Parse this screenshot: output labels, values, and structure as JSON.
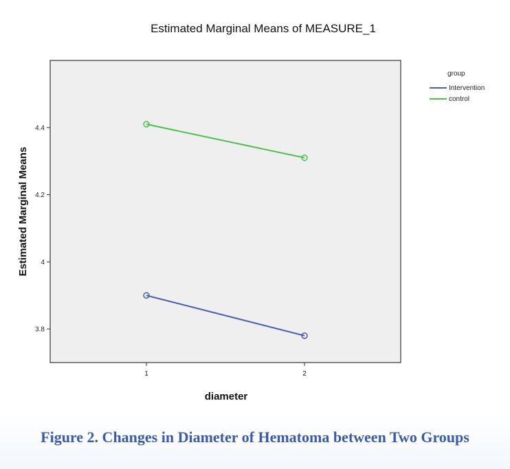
{
  "chart_data": {
    "type": "line",
    "title": "Estimated Marginal Means of MEASURE_1",
    "xlabel": "diameter",
    "ylabel": "Estimated Marginal Means",
    "categories": [
      "1",
      "2"
    ],
    "ylim": [
      3.7,
      4.6
    ],
    "yticks": [
      3.8,
      4.0,
      4.2,
      4.4
    ],
    "ytick_labels": [
      "3.8",
      "4",
      "4.2",
      "4.4"
    ],
    "legend_title": "group",
    "legend_position": "right",
    "grid": false,
    "series": [
      {
        "name": "Intervention",
        "values": [
          3.9,
          3.78
        ],
        "color": "#4a5fb0"
      },
      {
        "name": "control",
        "values": [
          4.41,
          4.31
        ],
        "color": "#4cc04c"
      }
    ]
  },
  "caption": "Figure 2. Changes in Diameter of Hematoma between Two Groups"
}
